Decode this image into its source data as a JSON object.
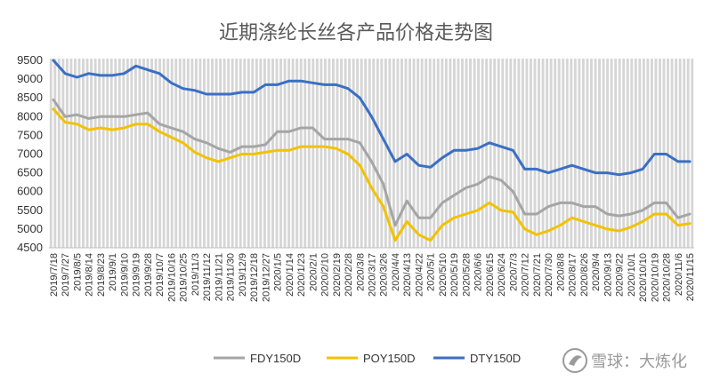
{
  "chart_data": {
    "type": "line",
    "title": "近期涤纶长丝各产品价格走势图",
    "xlabel": "",
    "ylabel": "",
    "ylim": [
      4500,
      9500
    ],
    "yticks": [
      4500,
      5000,
      5500,
      6000,
      6500,
      7000,
      7500,
      8000,
      8500,
      9000,
      9500
    ],
    "grid": false,
    "legend_position": "bottom",
    "x_tick_labels": [
      "2019/7/18",
      "2019/7/27",
      "2019/8/5",
      "2019/8/14",
      "2019/8/23",
      "2019/9/1",
      "2019/9/10",
      "2019/9/19",
      "2019/9/28",
      "2019/10/7",
      "2019/10/16",
      "2019/10/25",
      "2019/11/3",
      "2019/11/12",
      "2019/11/21",
      "2019/11/30",
      "2019/12/9",
      "2019/12/18",
      "2019/12/27",
      "2020/1/5",
      "2020/1/14",
      "2020/1/23",
      "2020/2/1",
      "2020/2/10",
      "2020/2/19",
      "2020/2/28",
      "2020/3/8",
      "2020/3/17",
      "2020/3/26",
      "2020/4/4",
      "2020/4/13",
      "2020/4/22",
      "2020/5/1",
      "2020/5/10",
      "2020/5/19",
      "2020/5/28",
      "2020/6/6",
      "2020/6/15",
      "2020/6/24",
      "2020/7/3",
      "2020/7/12",
      "2020/7/21",
      "2020/7/30",
      "2020/8/8",
      "2020/8/17",
      "2020/8/26",
      "2020/9/4",
      "2020/9/13",
      "2020/9/22",
      "2020/10/1",
      "2020/10/10",
      "2020/10/19",
      "2020/10/28",
      "2020/11/6",
      "2020/11/15"
    ],
    "series": [
      {
        "name": "FDY150D",
        "color": "#a5a5a5",
        "values": [
          8450,
          8000,
          8050,
          7950,
          8000,
          8000,
          8000,
          8050,
          8100,
          7800,
          7700,
          7600,
          7400,
          7300,
          7150,
          7050,
          7200,
          7200,
          7250,
          7600,
          7600,
          7700,
          7700,
          7400,
          7400,
          7400,
          7300,
          6800,
          6200,
          5100,
          5750,
          5300,
          5300,
          5700,
          5900,
          6100,
          6200,
          6400,
          6300,
          6000,
          5400,
          5400,
          5600,
          5700,
          5700,
          5600,
          5600,
          5400,
          5350,
          5400,
          5500,
          5700,
          5700,
          5300,
          5400
        ]
      },
      {
        "name": "POY150D",
        "color": "#f2c200",
        "values": [
          8200,
          7850,
          7800,
          7650,
          7700,
          7650,
          7700,
          7800,
          7800,
          7600,
          7450,
          7300,
          7050,
          6900,
          6800,
          6900,
          7000,
          7000,
          7050,
          7100,
          7100,
          7200,
          7200,
          7200,
          7150,
          7000,
          6700,
          6100,
          5600,
          4700,
          5200,
          4850,
          4700,
          5100,
          5300,
          5400,
          5500,
          5700,
          5500,
          5450,
          5000,
          4850,
          4950,
          5100,
          5300,
          5200,
          5100,
          5000,
          4950,
          5050,
          5200,
          5400,
          5400,
          5100,
          5150
        ]
      },
      {
        "name": "DTY150D",
        "color": "#3a6fc4",
        "values": [
          9500,
          9150,
          9050,
          9150,
          9100,
          9100,
          9150,
          9350,
          9250,
          9150,
          8900,
          8750,
          8700,
          8600,
          8600,
          8600,
          8650,
          8650,
          8850,
          8850,
          8950,
          8950,
          8900,
          8850,
          8850,
          8750,
          8500,
          8000,
          7400,
          6800,
          7000,
          6700,
          6650,
          6900,
          7100,
          7100,
          7150,
          7300,
          7200,
          7100,
          6600,
          6600,
          6500,
          6600,
          6700,
          6600,
          6500,
          6500,
          6450,
          6500,
          6600,
          7000,
          7000,
          6800,
          6800
        ]
      }
    ]
  },
  "legend": [
    "FDY150D",
    "POY150D",
    "DTY150D"
  ],
  "watermark": {
    "text": "雪球：大炼化",
    "icon": "snowball-logo-icon"
  }
}
